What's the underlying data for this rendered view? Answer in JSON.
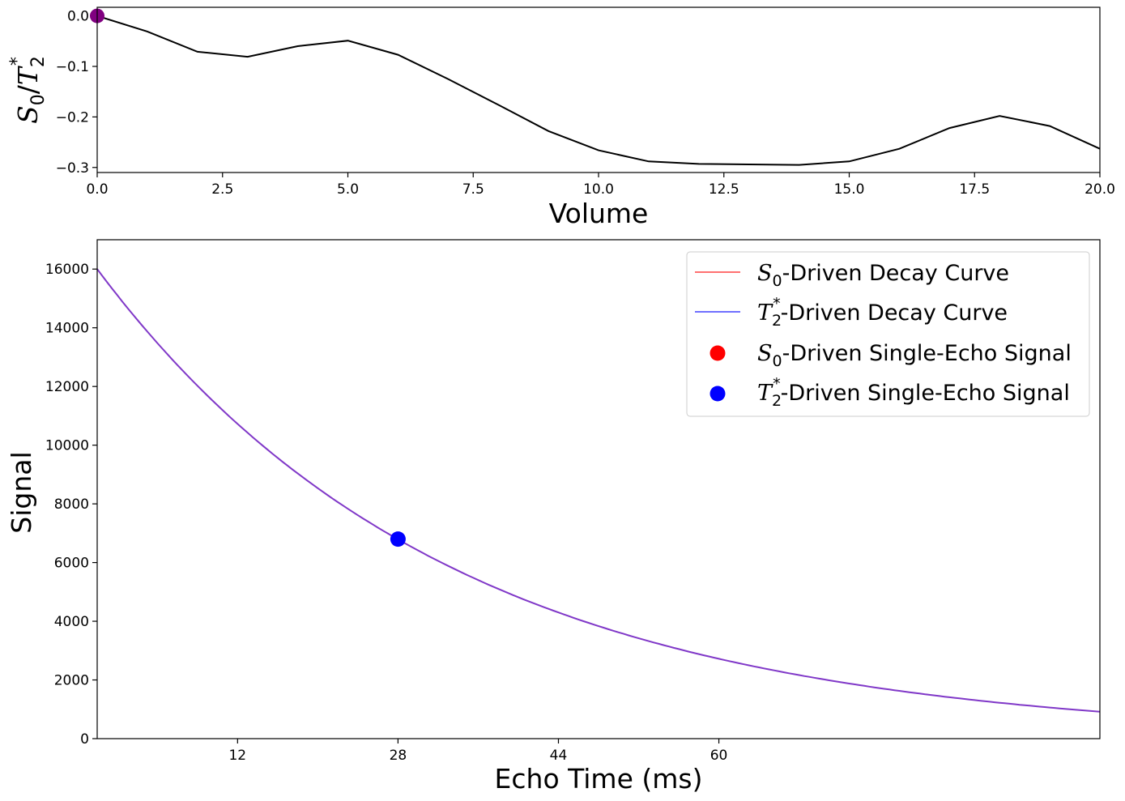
{
  "chart_data": [
    {
      "type": "line",
      "title": "",
      "xlabel": "Volume",
      "ylabel": {
        "s0": "S",
        "s0_sub": "0",
        "slash": "/",
        "t": "T",
        "t_sub": "2",
        "t_sup": "*"
      },
      "xlim": [
        0,
        20
      ],
      "ylim": [
        -0.31,
        0.017
      ],
      "x_ticks": [
        0.0,
        2.5,
        5.0,
        7.5,
        10.0,
        12.5,
        15.0,
        17.5,
        20.0
      ],
      "x_tick_labels": [
        "0.0",
        "2.5",
        "5.0",
        "7.5",
        "10.0",
        "12.5",
        "15.0",
        "17.5",
        "20.0"
      ],
      "y_ticks": [
        0.0,
        -0.1,
        -0.2,
        -0.3
      ],
      "y_tick_labels": [
        "0.0",
        "−0.1",
        "−0.2",
        "−0.3"
      ],
      "series": [
        {
          "color": "#000000",
          "x": [
            0,
            1,
            2,
            3,
            4,
            5,
            6,
            7,
            8,
            9,
            10,
            11,
            12,
            13,
            14,
            15,
            16,
            17,
            18,
            19,
            20
          ],
          "y": [
            0.0,
            -0.031,
            -0.071,
            -0.081,
            -0.06,
            -0.049,
            -0.077,
            -0.125,
            -0.176,
            -0.228,
            -0.266,
            -0.288,
            -0.293,
            -0.294,
            -0.295,
            -0.288,
            -0.263,
            -0.222,
            -0.198,
            -0.218,
            -0.263
          ]
        }
      ],
      "marker": {
        "x": 0,
        "y": 0.0,
        "color": "#800080"
      }
    },
    {
      "type": "line",
      "title": "",
      "xlabel": "Echo Time (ms)",
      "ylabel": "Signal",
      "xlim": [
        -2,
        98
      ],
      "ylim": [
        0,
        17000
      ],
      "x_ticks": [
        12,
        28,
        44,
        60
      ],
      "x_tick_labels": [
        "12",
        "28",
        "44",
        "60"
      ],
      "y_ticks": [
        0,
        2000,
        4000,
        6000,
        8000,
        10000,
        12000,
        14000,
        16000
      ],
      "y_tick_labels": [
        "0",
        "2000",
        "4000",
        "6000",
        "8000",
        "10000",
        "12000",
        "14000",
        "16000"
      ],
      "curve": {
        "s0": 16000,
        "t2star": 35,
        "x_start": -2,
        "x_end": 98,
        "color": "#8038c8"
      },
      "point": {
        "x": 28,
        "y": 6800,
        "color": "#0000ff"
      },
      "legend": {
        "placement": "top-right",
        "entries": [
          {
            "kind": "line",
            "color": "#ff7070",
            "sym": "S",
            "sub": "0",
            "sup": "",
            "text": "-Driven Decay Curve"
          },
          {
            "kind": "line",
            "color": "#7070ff",
            "sym": "T",
            "sub": "2",
            "sup": "*",
            "text": "-Driven Decay Curve"
          },
          {
            "kind": "dot",
            "color": "#ff0000",
            "sym": "S",
            "sub": "0",
            "sup": "",
            "text": "-Driven Single-Echo Signal"
          },
          {
            "kind": "dot",
            "color": "#0000ff",
            "sym": "T",
            "sub": "2",
            "sup": "*",
            "text": "-Driven Single-Echo Signal"
          }
        ]
      }
    }
  ]
}
